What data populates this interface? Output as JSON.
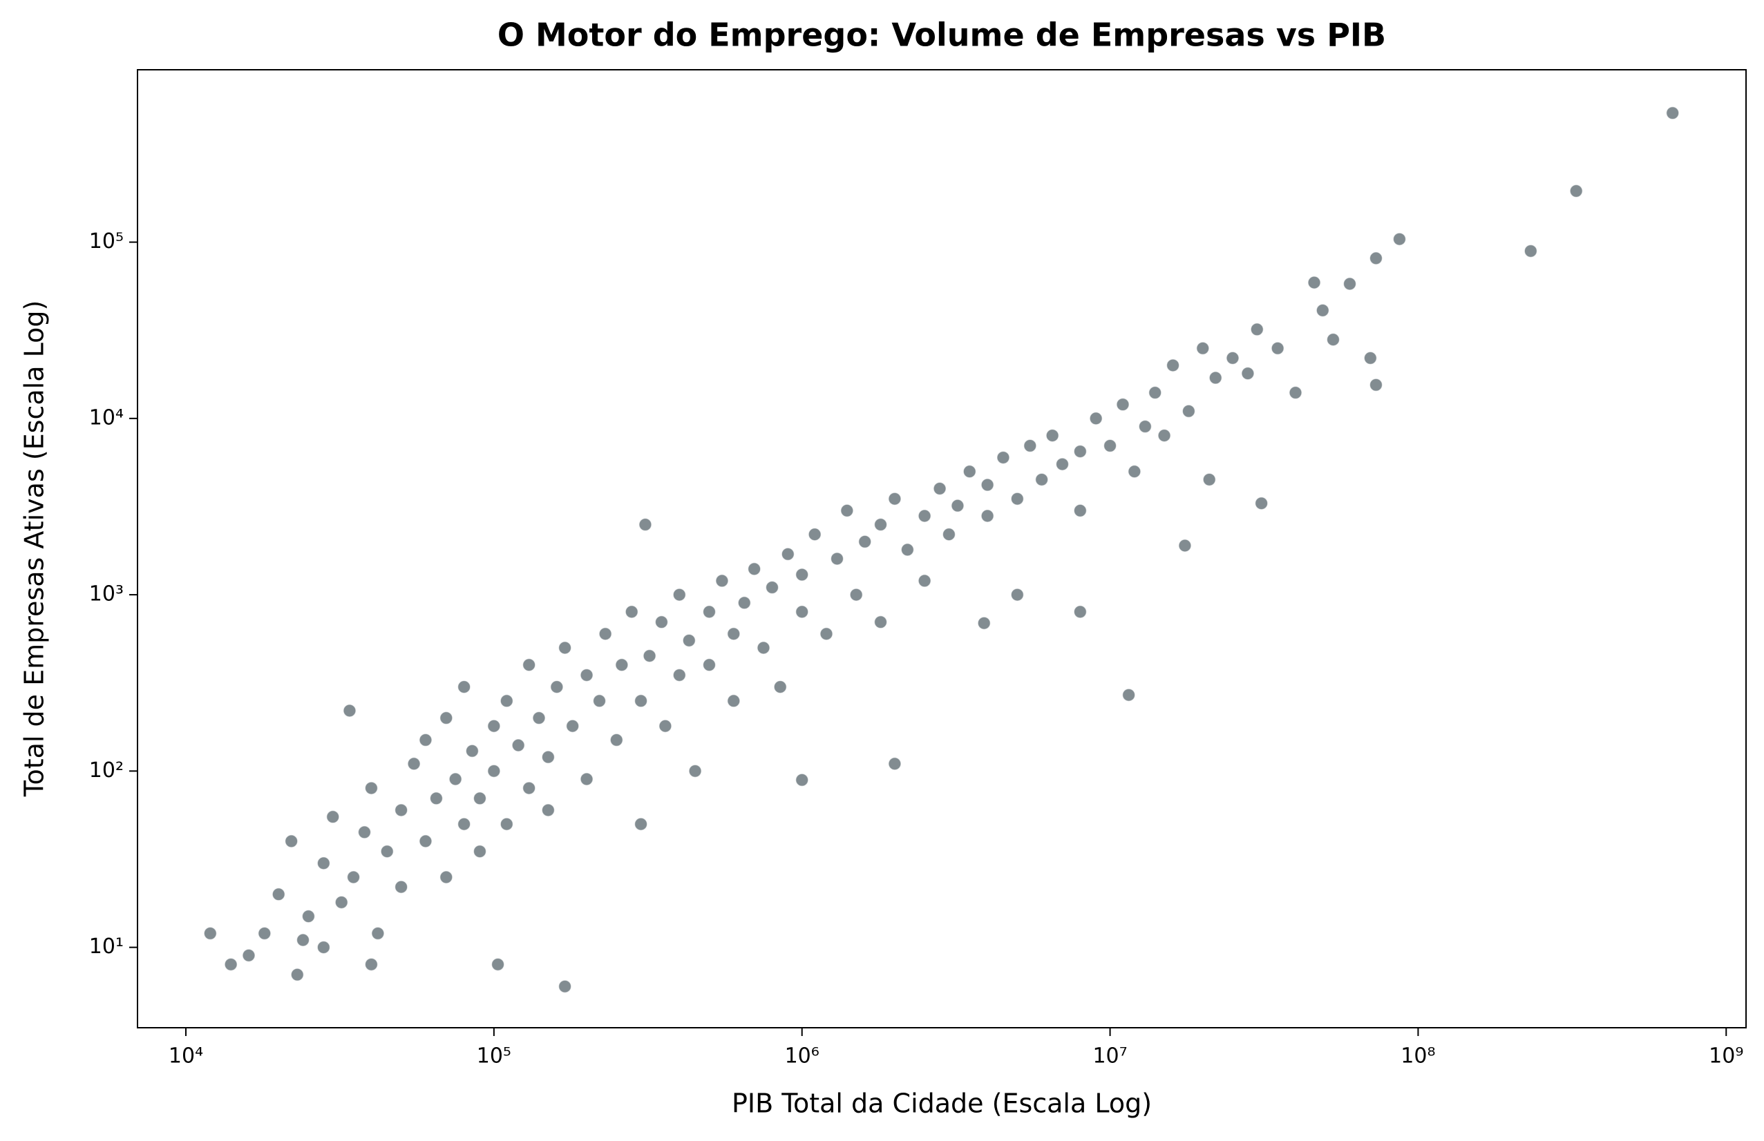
{
  "chart_data": {
    "type": "scatter",
    "title": "O Motor do Emprego: Volume de Empresas vs PIB",
    "xlabel": "PIB Total da Cidade (Escala Log)",
    "ylabel": "Total de Empresas Ativas (Escala Log)",
    "xscale": "log",
    "yscale": "log",
    "color": "#2f3f47",
    "xlim": [
      6966,
      1160000000
    ],
    "ylim": [
      3.5,
      950000
    ],
    "xticks": [
      {
        "value": 10000,
        "label": "10⁴"
      },
      {
        "value": 100000,
        "label": "10⁵"
      },
      {
        "value": 1000000,
        "label": "10⁶"
      },
      {
        "value": 10000000,
        "label": "10⁷"
      },
      {
        "value": 100000000,
        "label": "10⁸"
      },
      {
        "value": 1000000000,
        "label": "10⁹"
      }
    ],
    "yticks": [
      {
        "value": 10,
        "label": "10¹"
      },
      {
        "value": 100,
        "label": "10²"
      },
      {
        "value": 1000,
        "label": "10³"
      },
      {
        "value": 10000,
        "label": "10⁴"
      },
      {
        "value": 100000,
        "label": "10⁵"
      }
    ],
    "x": [
      670000000,
      326000000,
      232000000,
      87000000,
      73000000,
      60000000,
      46000000,
      49000000,
      53000000,
      70000000,
      73000000,
      31000000,
      11500000,
      17500000,
      21000000,
      8000000,
      3900000,
      170000,
      12000,
      23000,
      103000,
      310000,
      2000000,
      1000000,
      40000,
      20000,
      22000,
      25000,
      28000,
      30000,
      32000,
      35000,
      38000,
      40000,
      42000,
      45000,
      50000,
      50000,
      55000,
      60000,
      60000,
      65000,
      70000,
      70000,
      75000,
      80000,
      80000,
      85000,
      90000,
      90000,
      100000,
      100000,
      110000,
      110000,
      120000,
      130000,
      130000,
      140000,
      150000,
      150000,
      160000,
      170000,
      180000,
      200000,
      200000,
      220000,
      230000,
      250000,
      260000,
      280000,
      300000,
      300000,
      320000,
      350000,
      360000,
      400000,
      400000,
      430000,
      450000,
      500000,
      500000,
      550000,
      600000,
      600000,
      650000,
      700000,
      750000,
      800000,
      850000,
      900000,
      1000000,
      1000000,
      1100000,
      1200000,
      1300000,
      1400000,
      1500000,
      1600000,
      1800000,
      1800000,
      2000000,
      2200000,
      2500000,
      2500000,
      2800000,
      3000000,
      3200000,
      3500000,
      4000000,
      4000000,
      4500000,
      5000000,
      5000000,
      5500000,
      6000000,
      6500000,
      7000000,
      8000000,
      8000000,
      9000000,
      10000000,
      11000000,
      12000000,
      13000000,
      14000000,
      15000000,
      16000000,
      18000000,
      20000000,
      22000000,
      25000000,
      28000000,
      30000000,
      35000000,
      40000000,
      18000,
      16000,
      14000,
      24000,
      34000,
      28000
    ],
    "values": [
      540000,
      195000,
      89000,
      104000,
      81000,
      58000,
      59000,
      41000,
      28000,
      22000,
      15500,
      3300,
      270,
      1900,
      4500,
      800,
      690,
      6,
      12,
      7,
      8,
      2500,
      110,
      89,
      8,
      20,
      40,
      15,
      30,
      55,
      18,
      25,
      45,
      80,
      12,
      35,
      60,
      22,
      110,
      40,
      150,
      70,
      25,
      200,
      90,
      50,
      300,
      130,
      35,
      70,
      180,
      100,
      50,
      250,
      140,
      80,
      400,
      200,
      60,
      120,
      300,
      500,
      180,
      90,
      350,
      250,
      600,
      150,
      400,
      800,
      250,
      50,
      450,
      700,
      180,
      350,
      1000,
      550,
      100,
      800,
      400,
      1200,
      600,
      250,
      900,
      1400,
      500,
      1100,
      300,
      1700,
      800,
      1300,
      2200,
      600,
      1600,
      3000,
      1000,
      2000,
      2500,
      700,
      3500,
      1800,
      2800,
      1200,
      4000,
      2200,
      3200,
      5000,
      2800,
      4200,
      6000,
      3500,
      1000,
      7000,
      4500,
      8000,
      5500,
      6500,
      3000,
      10000,
      7000,
      12000,
      5000,
      9000,
      14000,
      8000,
      20000,
      11000,
      25000,
      17000,
      22000,
      18000,
      32000,
      25000,
      14000,
      12,
      9,
      8,
      11,
      220,
      10
    ]
  }
}
